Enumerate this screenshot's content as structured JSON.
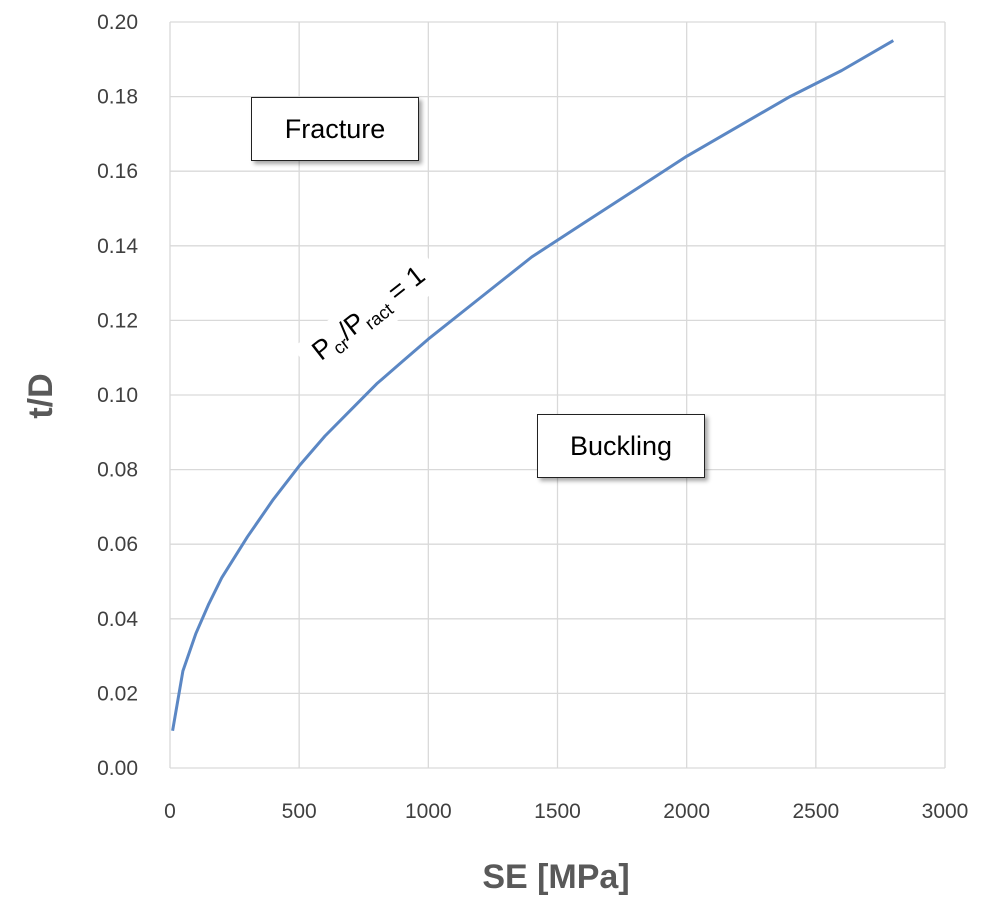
{
  "chart_data": {
    "type": "line",
    "xlabel": "SE [MPa]",
    "ylabel": "t/D",
    "xlim": [
      0,
      3000
    ],
    "ylim": [
      0,
      0.2
    ],
    "x_ticks": [
      "0",
      "500",
      "1000",
      "1500",
      "2000",
      "2500",
      "3000"
    ],
    "y_ticks": [
      "0.00",
      "0.02",
      "0.04",
      "0.06",
      "0.08",
      "0.10",
      "0.12",
      "0.14",
      "0.16",
      "0.18",
      "0.20"
    ],
    "grid": true,
    "legend": "none",
    "line_color": "#5b87c4",
    "series": [
      {
        "x": [
          10,
          50,
          100,
          150,
          200,
          300,
          400,
          500,
          600,
          700,
          800,
          900,
          1000,
          1200,
          1400,
          1600,
          1800,
          2000,
          2200,
          2400,
          2600,
          2800
        ],
        "y": [
          0.01,
          0.026,
          0.036,
          0.044,
          0.051,
          0.062,
          0.072,
          0.081,
          0.089,
          0.096,
          0.103,
          0.109,
          0.115,
          0.126,
          0.137,
          0.146,
          0.155,
          0.164,
          0.172,
          0.18,
          0.187,
          0.195
        ]
      }
    ],
    "annotations": {
      "fracture": "Fracture",
      "buckling": "Buckling",
      "curve_label": {
        "p1": "P",
        "sub1": "cr",
        "mid": "/P",
        "sub2": "ract",
        "tail": " = 1"
      }
    }
  }
}
